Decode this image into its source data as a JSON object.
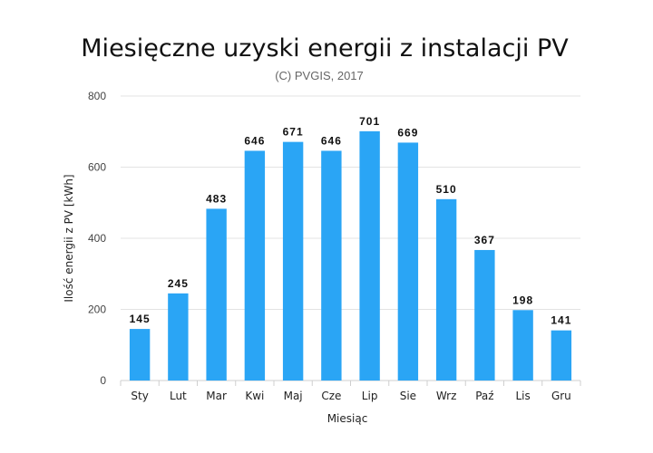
{
  "chart_data": {
    "type": "bar",
    "title": "Miesięczne uzyski energii z instalacji PV",
    "subtitle": "(C) PVGIS, 2017",
    "xlabel": "Miesiąc",
    "ylabel": "Ilość energii z PV [kWh]",
    "categories": [
      "Sty",
      "Lut",
      "Mar",
      "Kwi",
      "Maj",
      "Cze",
      "Lip",
      "Sie",
      "Wrz",
      "Paź",
      "Lis",
      "Gru"
    ],
    "values": [
      145,
      245,
      483,
      646,
      671,
      646,
      701,
      669,
      510,
      367,
      198,
      141
    ],
    "value_labels": [
      "145",
      "245",
      "483",
      "646",
      "671",
      "646",
      "701",
      "669",
      "510",
      "367",
      "198",
      "141"
    ],
    "ylim": [
      0,
      800
    ],
    "yticks": [
      "0",
      "200",
      "400",
      "600",
      "800"
    ],
    "grid": true,
    "legend": "none",
    "bar_color": "#2aa5f5"
  }
}
